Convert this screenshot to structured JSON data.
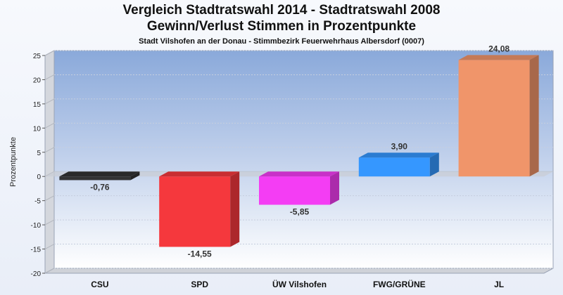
{
  "title": "Vergleich Stadtratswahl 2014 - Stadtratswahl 2008",
  "subtitle": "Gewinn/Verlust Stimmen in Prozentpunkte",
  "subsubtitle": "Stadt Vilshofen an der Donau - Stimmbezirk  Feuerwehrhaus Albersdorf (0007)",
  "chart_data": {
    "type": "bar",
    "categories": [
      "CSU",
      "SPD",
      "ÜW Vilshofen",
      "FWG/GRÜNE",
      "JL"
    ],
    "values": [
      -0.76,
      -14.55,
      -5.85,
      3.9,
      24.08
    ],
    "value_labels": [
      "-0,76",
      "-14,55",
      "-5,85",
      "3,90",
      "24,08"
    ],
    "colors": [
      "#333333",
      "#f5383d",
      "#f43df4",
      "#3597ff",
      "#f0956a"
    ],
    "ylabel": "Prozentpunkte",
    "xlabel": "",
    "ylim": [
      -20,
      25
    ],
    "yticks": [
      -20,
      -15,
      -10,
      -5,
      0,
      5,
      10,
      15,
      20,
      25
    ],
    "grid": true,
    "legend": "none"
  }
}
